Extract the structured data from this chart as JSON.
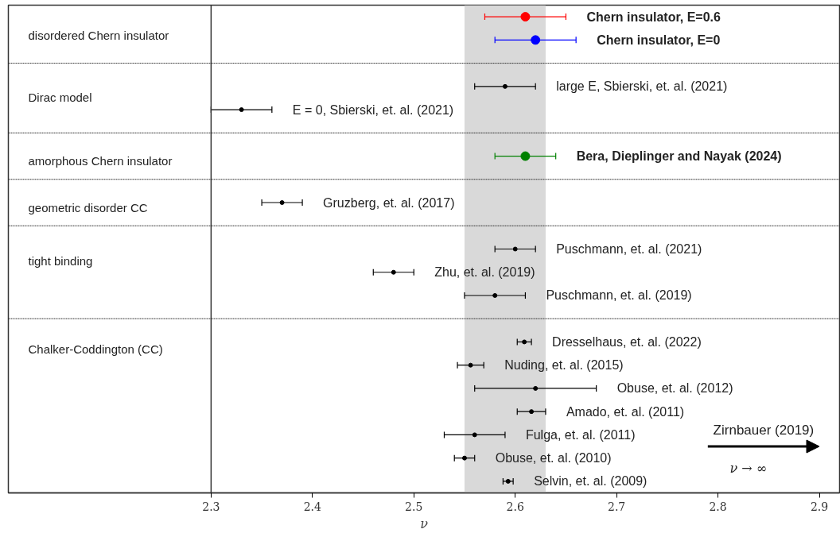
{
  "chart_data": {
    "type": "scatter",
    "orientation": "horizontal",
    "xlabel": "ν",
    "categories": [
      null,
      null,
      null,
      null,
      null,
      null,
      null,
      null,
      null,
      null,
      null,
      null,
      null,
      null,
      null,
      null,
      null,
      null,
      null,
      null,
      null
    ],
    "xlim": [
      2.1,
      2.92
    ],
    "xticks": [
      2.3,
      2.4,
      2.5,
      2.6,
      2.7,
      2.8,
      2.9
    ],
    "grid": "y",
    "marker": "circle",
    "ref_lines": [
      {
        "axis": "x",
        "value": 2.3,
        "color": "#333333"
      }
    ],
    "bands": [
      {
        "axis": "x",
        "from": 2.55,
        "to": 2.63,
        "color": "#d9d9d9"
      }
    ],
    "annotations": [
      "disordered Chern insulator",
      "Dirac model",
      "amorphous Chern insulator",
      "geometric disorder CC",
      "tight binding",
      "Chalker-Coddington (CC)",
      "Zirnbauer (2019)",
      "ν → ∞"
    ],
    "series": [
      {
        "name": "Chern insulator, E=0.6",
        "color": "#ff0000",
        "values": [
          2.61,
          null,
          null,
          null,
          null,
          null,
          null,
          null,
          null,
          null,
          null,
          null,
          null,
          null,
          null,
          null,
          null,
          null,
          null,
          null,
          null
        ],
        "errors": [
          0.04,
          null,
          null,
          null,
          null,
          null,
          null,
          null,
          null,
          null,
          null,
          null,
          null,
          null,
          null,
          null,
          null,
          null,
          null,
          null,
          null
        ]
      },
      {
        "name": "Chern insulator, E=0",
        "color": "#0000ff",
        "values": [
          null,
          2.62,
          null,
          null,
          null,
          null,
          null,
          null,
          null,
          null,
          null,
          null,
          null,
          null,
          null,
          null,
          null,
          null,
          null,
          null,
          null
        ],
        "errors": [
          null,
          0.04,
          null,
          null,
          null,
          null,
          null,
          null,
          null,
          null,
          null,
          null,
          null,
          null,
          null,
          null,
          null,
          null,
          null,
          null,
          null
        ]
      },
      {
        "name": "large E, Sbierski, et. al. (2021)",
        "color": "#000000",
        "values": [
          null,
          null,
          null,
          2.59,
          null,
          null,
          null,
          null,
          null,
          null,
          null,
          null,
          null,
          null,
          null,
          null,
          null,
          null,
          null,
          null,
          null
        ],
        "errors": [
          null,
          null,
          null,
          0.03,
          null,
          null,
          null,
          null,
          null,
          null,
          null,
          null,
          null,
          null,
          null,
          null,
          null,
          null,
          null,
          null,
          null
        ]
      },
      {
        "name": "E = 0, Sbierski, et. al. (2021)",
        "color": "#000000",
        "values": [
          null,
          null,
          null,
          null,
          2.33,
          null,
          null,
          null,
          null,
          null,
          null,
          null,
          null,
          null,
          null,
          null,
          null,
          null,
          null,
          null,
          null
        ],
        "errors": [
          null,
          null,
          null,
          null,
          0.03,
          null,
          null,
          null,
          null,
          null,
          null,
          null,
          null,
          null,
          null,
          null,
          null,
          null,
          null,
          null,
          null
        ]
      },
      {
        "name": "Bera, Dieplinger and Nayak (2024)",
        "color": "#008000",
        "values": [
          null,
          null,
          null,
          null,
          null,
          null,
          2.61,
          null,
          null,
          null,
          null,
          null,
          null,
          null,
          null,
          null,
          null,
          null,
          null,
          null,
          null
        ],
        "errors": [
          null,
          null,
          null,
          null,
          null,
          null,
          0.03,
          null,
          null,
          null,
          null,
          null,
          null,
          null,
          null,
          null,
          null,
          null,
          null,
          null,
          null
        ]
      },
      {
        "name": "Gruzberg, et. al. (2017)",
        "color": "#000000",
        "values": [
          null,
          null,
          null,
          null,
          null,
          null,
          null,
          null,
          2.37,
          null,
          null,
          null,
          null,
          null,
          null,
          null,
          null,
          null,
          null,
          null,
          null
        ],
        "errors": [
          null,
          null,
          null,
          null,
          null,
          null,
          null,
          null,
          0.02,
          null,
          null,
          null,
          null,
          null,
          null,
          null,
          null,
          null,
          null,
          null,
          null
        ]
      },
      {
        "name": "Puschmann, et. al. (2021)",
        "color": "#000000",
        "values": [
          null,
          null,
          null,
          null,
          null,
          null,
          null,
          null,
          null,
          null,
          2.6,
          null,
          null,
          null,
          null,
          null,
          null,
          null,
          null,
          null,
          null
        ],
        "errors": [
          null,
          null,
          null,
          null,
          null,
          null,
          null,
          null,
          null,
          null,
          0.02,
          null,
          null,
          null,
          null,
          null,
          null,
          null,
          null,
          null,
          null
        ]
      },
      {
        "name": "Zhu, et. al. (2019)",
        "color": "#000000",
        "values": [
          null,
          null,
          null,
          null,
          null,
          null,
          null,
          null,
          null,
          null,
          null,
          2.48,
          null,
          null,
          null,
          null,
          null,
          null,
          null,
          null,
          null
        ],
        "errors": [
          null,
          null,
          null,
          null,
          null,
          null,
          null,
          null,
          null,
          null,
          null,
          0.02,
          null,
          null,
          null,
          null,
          null,
          null,
          null,
          null,
          null
        ]
      },
      {
        "name": "Puschmann, et. al. (2019)",
        "color": "#000000",
        "values": [
          null,
          null,
          null,
          null,
          null,
          null,
          null,
          null,
          null,
          null,
          null,
          null,
          2.58,
          null,
          null,
          null,
          null,
          null,
          null,
          null,
          null
        ],
        "errors": [
          null,
          null,
          null,
          null,
          null,
          null,
          null,
          null,
          null,
          null,
          null,
          null,
          0.03,
          null,
          null,
          null,
          null,
          null,
          null,
          null,
          null
        ]
      },
      {
        "name": "Dresselhaus, et. al. (2022)",
        "color": "#000000",
        "values": [
          null,
          null,
          null,
          null,
          null,
          null,
          null,
          null,
          null,
          null,
          null,
          null,
          null,
          null,
          2.609,
          null,
          null,
          null,
          null,
          null,
          null
        ],
        "errors": [
          null,
          null,
          null,
          null,
          null,
          null,
          null,
          null,
          null,
          null,
          null,
          null,
          null,
          null,
          0.007,
          null,
          null,
          null,
          null,
          null,
          null
        ]
      },
      {
        "name": "Nuding, et. al. (2015)",
        "color": "#000000",
        "values": [
          null,
          null,
          null,
          null,
          null,
          null,
          null,
          null,
          null,
          null,
          null,
          null,
          null,
          null,
          null,
          2.556,
          null,
          null,
          null,
          null,
          null
        ],
        "errors": [
          null,
          null,
          null,
          null,
          null,
          null,
          null,
          null,
          null,
          null,
          null,
          null,
          null,
          null,
          null,
          0.013,
          null,
          null,
          null,
          null,
          null
        ]
      },
      {
        "name": "Obuse, et. al. (2012)",
        "color": "#000000",
        "values": [
          null,
          null,
          null,
          null,
          null,
          null,
          null,
          null,
          null,
          null,
          null,
          null,
          null,
          null,
          null,
          null,
          2.62,
          null,
          null,
          null,
          null
        ],
        "errors": [
          null,
          null,
          null,
          null,
          null,
          null,
          null,
          null,
          null,
          null,
          null,
          null,
          null,
          null,
          null,
          null,
          0.06,
          null,
          null,
          null,
          null
        ]
      },
      {
        "name": "Amado, et. al. (2011)",
        "color": "#000000",
        "values": [
          null,
          null,
          null,
          null,
          null,
          null,
          null,
          null,
          null,
          null,
          null,
          null,
          null,
          null,
          null,
          null,
          null,
          2.616,
          null,
          null,
          null
        ],
        "errors": [
          null,
          null,
          null,
          null,
          null,
          null,
          null,
          null,
          null,
          null,
          null,
          null,
          null,
          null,
          null,
          null,
          null,
          0.014,
          null,
          null,
          null
        ]
      },
      {
        "name": "Fulga, et. al. (2011)",
        "color": "#000000",
        "values": [
          null,
          null,
          null,
          null,
          null,
          null,
          null,
          null,
          null,
          null,
          null,
          null,
          null,
          null,
          null,
          null,
          null,
          null,
          2.56,
          null,
          null
        ],
        "errors": [
          null,
          null,
          null,
          null,
          null,
          null,
          null,
          null,
          null,
          null,
          null,
          null,
          null,
          null,
          null,
          null,
          null,
          null,
          0.03,
          null,
          null
        ]
      },
      {
        "name": "Obuse, et. al. (2010)",
        "color": "#000000",
        "values": [
          null,
          null,
          null,
          null,
          null,
          null,
          null,
          null,
          null,
          null,
          null,
          null,
          null,
          null,
          null,
          null,
          null,
          null,
          null,
          2.55,
          null
        ],
        "errors": [
          null,
          null,
          null,
          null,
          null,
          null,
          null,
          null,
          null,
          null,
          null,
          null,
          null,
          null,
          null,
          null,
          null,
          null,
          null,
          0.01,
          null
        ]
      },
      {
        "name": "Selvin, et. al. (2009)",
        "color": "#000000",
        "values": [
          null,
          null,
          null,
          null,
          null,
          null,
          null,
          null,
          null,
          null,
          null,
          null,
          null,
          null,
          null,
          null,
          null,
          null,
          null,
          null,
          2.593
        ],
        "errors": [
          null,
          null,
          null,
          null,
          null,
          null,
          null,
          null,
          null,
          null,
          null,
          null,
          null,
          null,
          null,
          null,
          null,
          null,
          null,
          null,
          0.005
        ]
      }
    ]
  }
}
